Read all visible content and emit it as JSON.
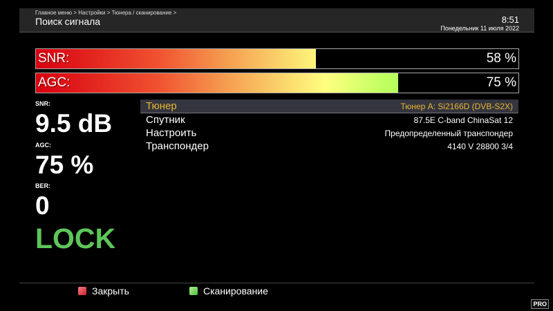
{
  "header": {
    "breadcrumb": "Главное меню > Настройки > Тюнера / сканирование >",
    "title": "Поиск сигнала",
    "time": "8:51",
    "date": "Понедельник 11 июля 2022"
  },
  "bars": [
    {
      "label": "SNR:",
      "value": "58 %",
      "percent": 58
    },
    {
      "label": "AGC:",
      "value": "75 %",
      "percent": 75
    }
  ],
  "stats": {
    "snr_label": "SNR:",
    "snr_value": "9.5 dB",
    "agc_label": "AGC:",
    "agc_value": "75 %",
    "ber_label": "BER:",
    "ber_value": "0",
    "lock": "LOCK",
    "lock_color": "#5ec65a"
  },
  "rows": [
    {
      "key": "Тюнер",
      "value": "Тюнер A: Si2166D (DVB-S2X)"
    },
    {
      "key": "Спутник",
      "value": "87.5E C-band ChinaSat 12"
    },
    {
      "key": "Настроить",
      "value": "Предопределенный транспондер"
    },
    {
      "key": "Транспондер",
      "value": "4140 V 28800 3/4"
    }
  ],
  "footer": {
    "close": "Закрыть",
    "scan": "Сканирование",
    "close_color": "#d02030",
    "scan_color": "#50c040"
  },
  "logo": "PRO"
}
